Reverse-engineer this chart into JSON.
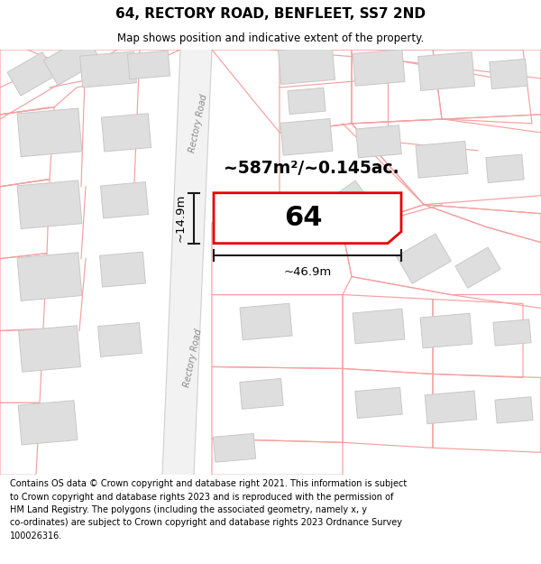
{
  "title": "64, RECTORY ROAD, BENFLEET, SS7 2ND",
  "subtitle": "Map shows position and indicative extent of the property.",
  "footer_line1": "Contains OS data © Crown copyright and database right 2021. This information is subject to Crown copyright and database rights 2023 and is reproduced with the permission of",
  "footer_line2": "HM Land Registry. The polygons (including the associated geometry, namely x, y co-ordinates) are subject to Crown copyright and database rights 2023 Ordnance Survey 100026316.",
  "area_label": "~587m²/~0.145ac.",
  "width_label": "~46.9m",
  "height_label": "~14.9m",
  "number_label": "64",
  "bg_color": "#ffffff",
  "building_fill": "#dedede",
  "building_edge": "#c8c8c8",
  "parcel_edge": "#f5a0a0",
  "road_fill": "#f0f0f0",
  "property_edge": "#e60000",
  "dim_color": "#1a1a1a",
  "road_text_color": "#888888"
}
